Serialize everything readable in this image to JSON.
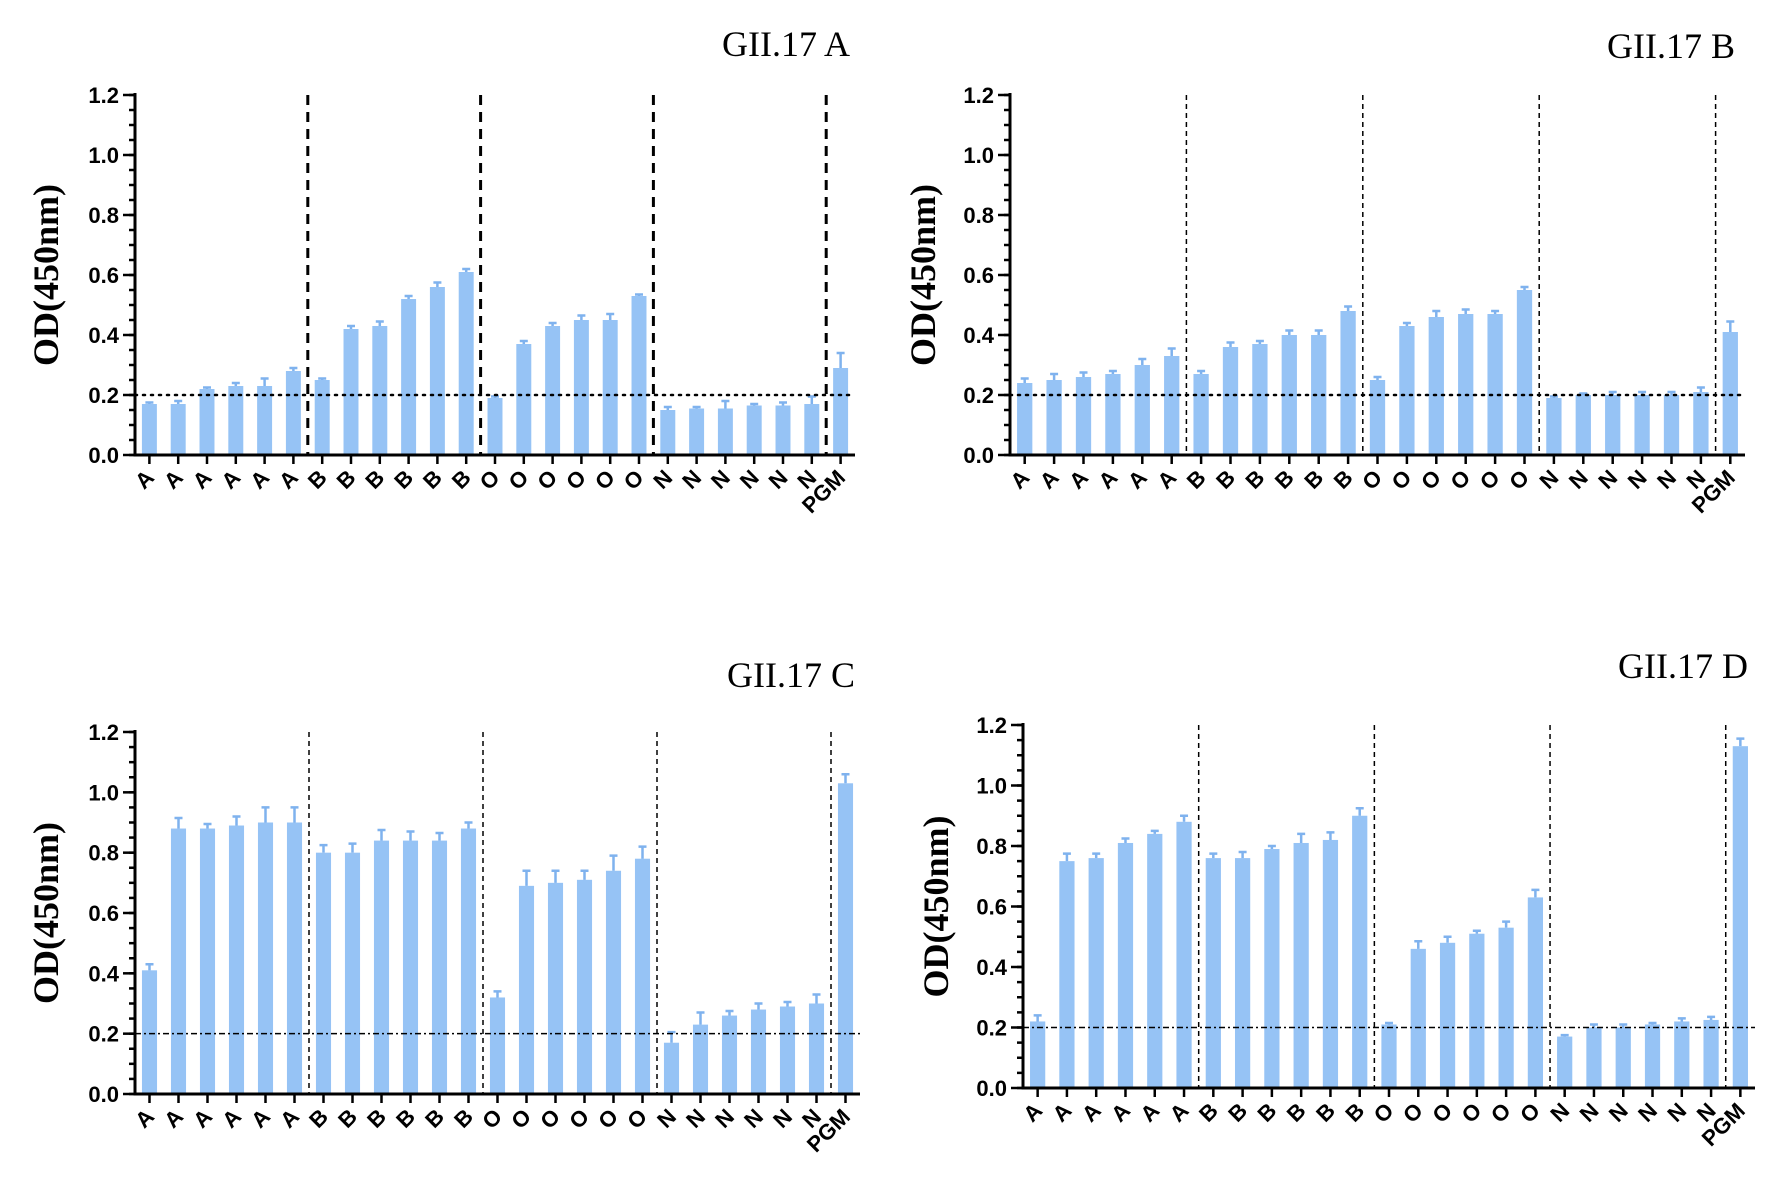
{
  "figure": {
    "bar_color": "#96c3f5",
    "error_color": "#7fb2ee",
    "axis_color": "#000000"
  },
  "chart_data": [
    {
      "type": "bar",
      "title": "GII.17 A",
      "xlabel": "",
      "ylabel": "OD(450nm)",
      "ylim": [
        0,
        1.2
      ],
      "yticks": [
        "0.0",
        "0.2",
        "0.4",
        "0.6",
        "0.8",
        "1.0",
        "1.2"
      ],
      "categories": [
        "A",
        "A",
        "A",
        "A",
        "A",
        "A",
        "B",
        "B",
        "B",
        "B",
        "B",
        "B",
        "O",
        "O",
        "O",
        "O",
        "O",
        "O",
        "N",
        "N",
        "N",
        "N",
        "N",
        "N",
        "PGM"
      ],
      "values": [
        0.17,
        0.17,
        0.22,
        0.23,
        0.23,
        0.28,
        0.25,
        0.42,
        0.43,
        0.52,
        0.56,
        0.61,
        0.19,
        0.37,
        0.43,
        0.45,
        0.45,
        0.53,
        0.15,
        0.155,
        0.155,
        0.165,
        0.165,
        0.17,
        0.29
      ],
      "errors": [
        0.005,
        0.01,
        0.005,
        0.01,
        0.025,
        0.01,
        0.005,
        0.01,
        0.015,
        0.01,
        0.015,
        0.01,
        0.005,
        0.01,
        0.01,
        0.015,
        0.02,
        0.005,
        0.01,
        0.005,
        0.025,
        0.005,
        0.01,
        0.025,
        0.05
      ],
      "threshold": 0.2,
      "threshold_style": "dotted",
      "separator_style": "thick-dashed"
    },
    {
      "type": "bar",
      "title": "GII.17 B",
      "xlabel": "",
      "ylabel": "OD(450nm)",
      "ylim": [
        0,
        1.2
      ],
      "yticks": [
        "0.0",
        "0.2",
        "0.4",
        "0.6",
        "0.8",
        "1.0",
        "1.2"
      ],
      "categories": [
        "A",
        "A",
        "A",
        "A",
        "A",
        "A",
        "B",
        "B",
        "B",
        "B",
        "B",
        "B",
        "O",
        "O",
        "O",
        "O",
        "O",
        "O",
        "N",
        "N",
        "N",
        "N",
        "N",
        "N",
        "PGM"
      ],
      "values": [
        0.24,
        0.25,
        0.26,
        0.27,
        0.3,
        0.33,
        0.27,
        0.36,
        0.37,
        0.4,
        0.4,
        0.48,
        0.25,
        0.43,
        0.46,
        0.47,
        0.47,
        0.55,
        0.19,
        0.2,
        0.2,
        0.2,
        0.2,
        0.21,
        0.41
      ],
      "errors": [
        0.015,
        0.02,
        0.015,
        0.01,
        0.02,
        0.025,
        0.01,
        0.015,
        0.01,
        0.015,
        0.015,
        0.015,
        0.01,
        0.01,
        0.02,
        0.015,
        0.01,
        0.01,
        0.005,
        0.005,
        0.01,
        0.01,
        0.01,
        0.015,
        0.035
      ],
      "threshold": 0.2,
      "threshold_style": "dotted",
      "separator_style": "thin-dashed"
    },
    {
      "type": "bar",
      "title": "GII.17 C",
      "xlabel": "",
      "ylabel": "OD(450nm)",
      "ylim": [
        0,
        1.2
      ],
      "yticks": [
        "0.0",
        "0.2",
        "0.4",
        "0.6",
        "0.8",
        "1.0",
        "1.2"
      ],
      "categories": [
        "A",
        "A",
        "A",
        "A",
        "A",
        "A",
        "B",
        "B",
        "B",
        "B",
        "B",
        "B",
        "O",
        "O",
        "O",
        "O",
        "O",
        "O",
        "N",
        "N",
        "N",
        "N",
        "N",
        "N",
        "PGM"
      ],
      "values": [
        0.41,
        0.88,
        0.88,
        0.89,
        0.9,
        0.9,
        0.8,
        0.8,
        0.84,
        0.84,
        0.84,
        0.88,
        0.32,
        0.69,
        0.7,
        0.71,
        0.74,
        0.78,
        0.17,
        0.23,
        0.26,
        0.28,
        0.29,
        0.3,
        1.03
      ],
      "errors": [
        0.02,
        0.035,
        0.015,
        0.03,
        0.05,
        0.05,
        0.025,
        0.03,
        0.035,
        0.03,
        0.025,
        0.02,
        0.02,
        0.05,
        0.04,
        0.03,
        0.05,
        0.04,
        0.035,
        0.04,
        0.015,
        0.02,
        0.015,
        0.03,
        0.03
      ],
      "threshold": 0.2,
      "threshold_style": "dashdot",
      "separator_style": "thin-dashed"
    },
    {
      "type": "bar",
      "title": "GII.17 D",
      "xlabel": "",
      "ylabel": "OD(450nm)",
      "ylim": [
        0,
        1.2
      ],
      "yticks": [
        "0.0",
        "0.2",
        "0.4",
        "0.6",
        "0.8",
        "1.0",
        "1.2"
      ],
      "categories": [
        "A",
        "A",
        "A",
        "A",
        "A",
        "A",
        "B",
        "B",
        "B",
        "B",
        "B",
        "B",
        "O",
        "O",
        "O",
        "O",
        "O",
        "O",
        "N",
        "N",
        "N",
        "N",
        "N",
        "N",
        "PGM"
      ],
      "values": [
        0.22,
        0.75,
        0.76,
        0.81,
        0.84,
        0.88,
        0.76,
        0.76,
        0.79,
        0.81,
        0.82,
        0.9,
        0.21,
        0.46,
        0.48,
        0.51,
        0.53,
        0.63,
        0.17,
        0.2,
        0.2,
        0.21,
        0.22,
        0.225,
        1.13
      ],
      "errors": [
        0.02,
        0.025,
        0.015,
        0.015,
        0.01,
        0.02,
        0.015,
        0.02,
        0.01,
        0.03,
        0.025,
        0.025,
        0.005,
        0.025,
        0.02,
        0.01,
        0.02,
        0.025,
        0.005,
        0.01,
        0.01,
        0.005,
        0.01,
        0.01,
        0.025
      ],
      "threshold": 0.2,
      "threshold_style": "dashdot",
      "separator_style": "thin-dashed"
    }
  ]
}
